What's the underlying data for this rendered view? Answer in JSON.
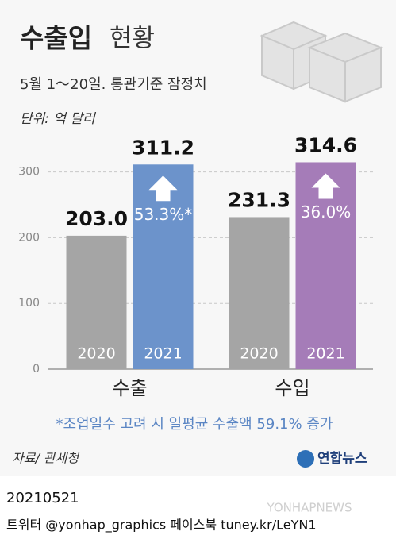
{
  "chart_data": {
    "type": "bar",
    "title": "수출입",
    "title_rest": "현황",
    "subtitle": "5월 1～20일. 통관기준 잠정치",
    "unit": "단위: 억 달러",
    "categories": [
      "수출",
      "수입"
    ],
    "series": [
      {
        "name": "2020",
        "color": "#a5a5a5",
        "values": [
          203.0,
          231.3
        ],
        "value_labels": [
          "203.0",
          "231.3"
        ]
      },
      {
        "name": "2021",
        "colors": [
          "#6c93cb",
          "#a57cb8"
        ],
        "values": [
          311.2,
          314.6
        ],
        "value_labels": [
          "311.2",
          "314.6"
        ],
        "annotations": [
          "53.3%*",
          "36.0%"
        ]
      }
    ],
    "ylim": [
      0,
      320
    ],
    "yticks": [
      0,
      100,
      200,
      300
    ],
    "grid": true,
    "footnote": "*조업일수 고려 시 일평균 수출액 59.1% 증가",
    "source": "자료/ 관세청",
    "logo": "연합뉴스",
    "date": "20210521",
    "footer": "트위터 @yonhap_graphics  페이스북 tuney.kr/LeYN1",
    "watermark": "YONHAPNEWS"
  }
}
